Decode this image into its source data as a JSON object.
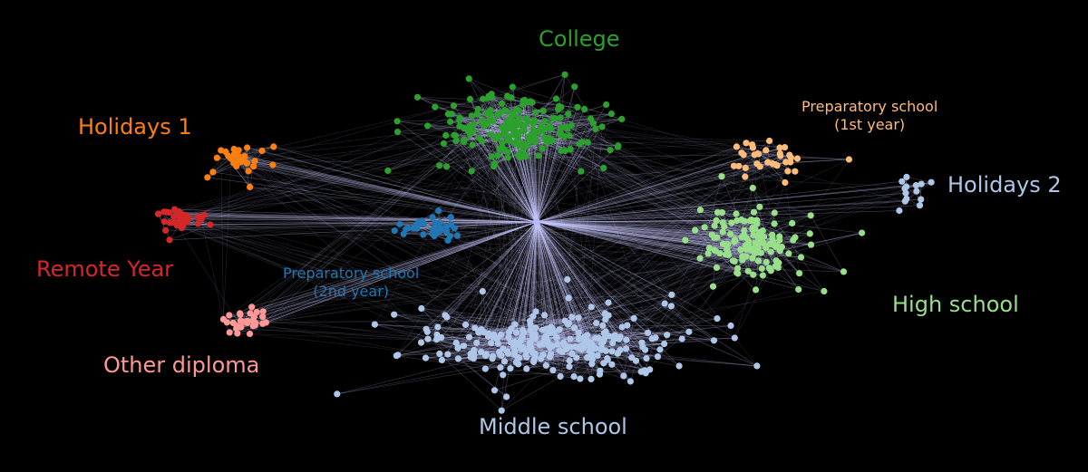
{
  "colors": {
    "background": "#000000",
    "edges": "#c8c8ff",
    "hub": "#b8b8ff",
    "college": "#2ca02c",
    "holidays_1": "#ff7f0e",
    "preparatory_1st": "#ffbb78",
    "holidays_2": "#aec7e8",
    "remote_year": "#d62728",
    "preparatory_2nd": "#1f77b4",
    "high_school": "#98df8a",
    "other_diploma": "#ff9896",
    "middle_school": "#aec7e8"
  },
  "communities": [
    {
      "key": "college",
      "label": "College",
      "color": "#2ca02c"
    },
    {
      "key": "holidays_1",
      "label": "Holidays 1",
      "color": "#ff7f0e"
    },
    {
      "key": "preparatory_1st",
      "label_line1": "Preparatory school",
      "label_line2": "(1st year)",
      "color": "#ffbb78"
    },
    {
      "key": "holidays_2",
      "label": "Holidays 2",
      "color": "#aec7e8"
    },
    {
      "key": "remote_year",
      "label": "Remote Year",
      "color": "#d62728"
    },
    {
      "key": "preparatory_2nd",
      "label_line1": "Preparatory school",
      "label_line2": "(2nd year)",
      "color": "#1f77b4"
    },
    {
      "key": "high_school",
      "label": "High school",
      "color": "#98df8a"
    },
    {
      "key": "other_diploma",
      "label": "Other diploma",
      "color": "#ff9896"
    },
    {
      "key": "middle_school",
      "label": "Middle school",
      "color": "#aec7e8"
    }
  ]
}
